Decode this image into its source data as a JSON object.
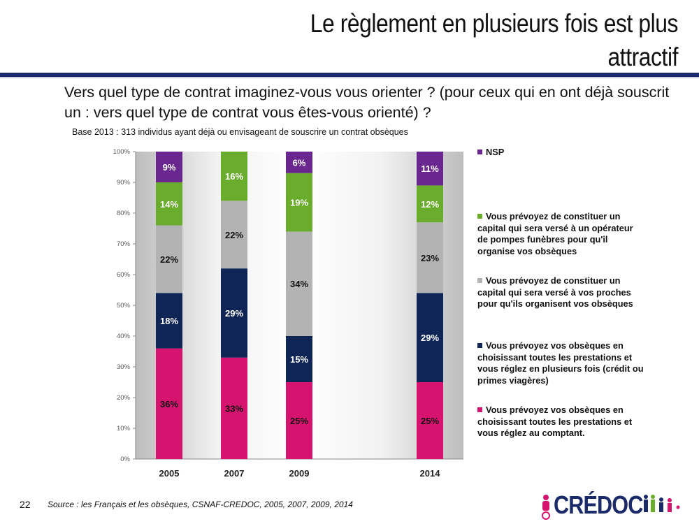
{
  "slide": {
    "title": "Le règlement en plusieurs fois est plus attractif",
    "question": "Vers quel type de contrat imaginez-vous vous orienter ? (pour ceux qui en ont déjà souscrit un : vers quel type de contrat vous êtes-vous orienté) ?",
    "base_note": "Base 2013 : 313 individus ayant déjà ou envisageant de souscrire un contrat obsèques",
    "page_number": "22",
    "source": "Source : les Français et les obsèques, CSNAF-CREDOC, 2005, 2007, 2009, 2014",
    "logo_text": "CRÉDOC"
  },
  "chart_data": {
    "type": "bar",
    "stacked": true,
    "categories": [
      "2005",
      "2007",
      "2009",
      "2014"
    ],
    "ylim": [
      0,
      100
    ],
    "yticks": [
      "0%",
      "10%",
      "20%",
      "30%",
      "40%",
      "50%",
      "60%",
      "70%",
      "80%",
      "90%",
      "100%"
    ],
    "series": [
      {
        "name": "Vous prévoyez vos obsèques en choisissant toutes les prestations et vous réglez au comptant.",
        "color": "#d6136f",
        "values": [
          36,
          33,
          25,
          25
        ],
        "labels": [
          "36%",
          "33%",
          "25%",
          "25%"
        ]
      },
      {
        "name": "Vous prévoyez vos obsèques en choisissant toutes les prestations et vous réglez en plusieurs fois (crédit ou primes viagères)",
        "color": "#0e2556",
        "values": [
          18,
          29,
          15,
          29
        ],
        "labels": [
          "18%",
          "29%",
          "15%",
          "29%"
        ]
      },
      {
        "name": "Vous prévoyez de constituer un capital qui sera versé à vos proches pour qu'ils organisent vos obsèques",
        "color": "#b3b3b3",
        "values": [
          22,
          22,
          34,
          23
        ],
        "labels": [
          "22%",
          "22%",
          "34%",
          "23%"
        ]
      },
      {
        "name": "Vous prévoyez de constituer un capital qui sera versé à un opérateur de pompes funèbres pour qu'il organise vos obsèques",
        "color": "#6aac2c",
        "values": [
          14,
          16,
          19,
          12
        ],
        "labels": [
          "14%",
          "16%",
          "19%",
          "12%"
        ]
      },
      {
        "name": "NSP",
        "color": "#6b2790",
        "values": [
          9,
          0,
          6,
          11
        ],
        "labels": [
          "9%",
          "",
          "6%",
          "11%"
        ]
      }
    ],
    "legend_order": [
      "NSP",
      "Vous prévoyez de constituer un capital qui sera versé à un opérateur de pompes funèbres pour qu'il organise vos obsèques",
      "Vous prévoyez de constituer un capital qui sera versé à vos proches pour qu'ils organisent vos obsèques",
      "Vous prévoyez vos obsèques en choisissant toutes les prestations et vous réglez en plusieurs fois (crédit ou primes viagères)",
      "Vous prévoyez vos obsèques en choisissant toutes les prestations et vous réglez au comptant."
    ],
    "legend_position": "right"
  }
}
